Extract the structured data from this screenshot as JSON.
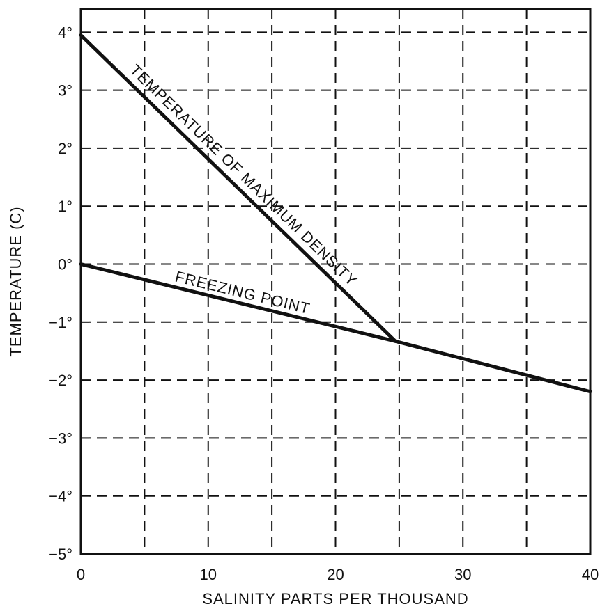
{
  "chart_data": {
    "type": "line",
    "xlabel": "SALINITY PARTS PER THOUSAND",
    "ylabel": "TEMPERATURE (C)",
    "xlim": [
      0,
      40
    ],
    "ylim": [
      -5,
      4.4
    ],
    "x_ticks": [
      0,
      10,
      20,
      30,
      40
    ],
    "x_tick_labels": [
      "0",
      "10",
      "20",
      "30",
      "40"
    ],
    "x_gridlines": [
      5,
      10,
      15,
      20,
      25,
      30,
      35
    ],
    "y_ticks": [
      4,
      3,
      2,
      1,
      0,
      -1,
      -2,
      -3,
      -4,
      -5
    ],
    "y_tick_labels": [
      "4°",
      "3°",
      "2°",
      "1°",
      "0°",
      "−1°",
      "−2°",
      "−3°",
      "−4°",
      "−5°"
    ],
    "grid": true,
    "grid_style": "dashed",
    "series": [
      {
        "name": "TEMPERATURE OF MAXIMUM DENSITY",
        "x": [
          0,
          24.7
        ],
        "y": [
          3.95,
          -1.33
        ]
      },
      {
        "name": "FREEZING POINT",
        "x": [
          0,
          24.7,
          40
        ],
        "y": [
          0,
          -1.33,
          -2.2
        ]
      }
    ],
    "annotations": [
      {
        "text": "TEMPERATURE OF MAXIMUM DENSITY",
        "series": 0
      },
      {
        "text": "FREEZING POINT",
        "series": 1
      }
    ]
  }
}
